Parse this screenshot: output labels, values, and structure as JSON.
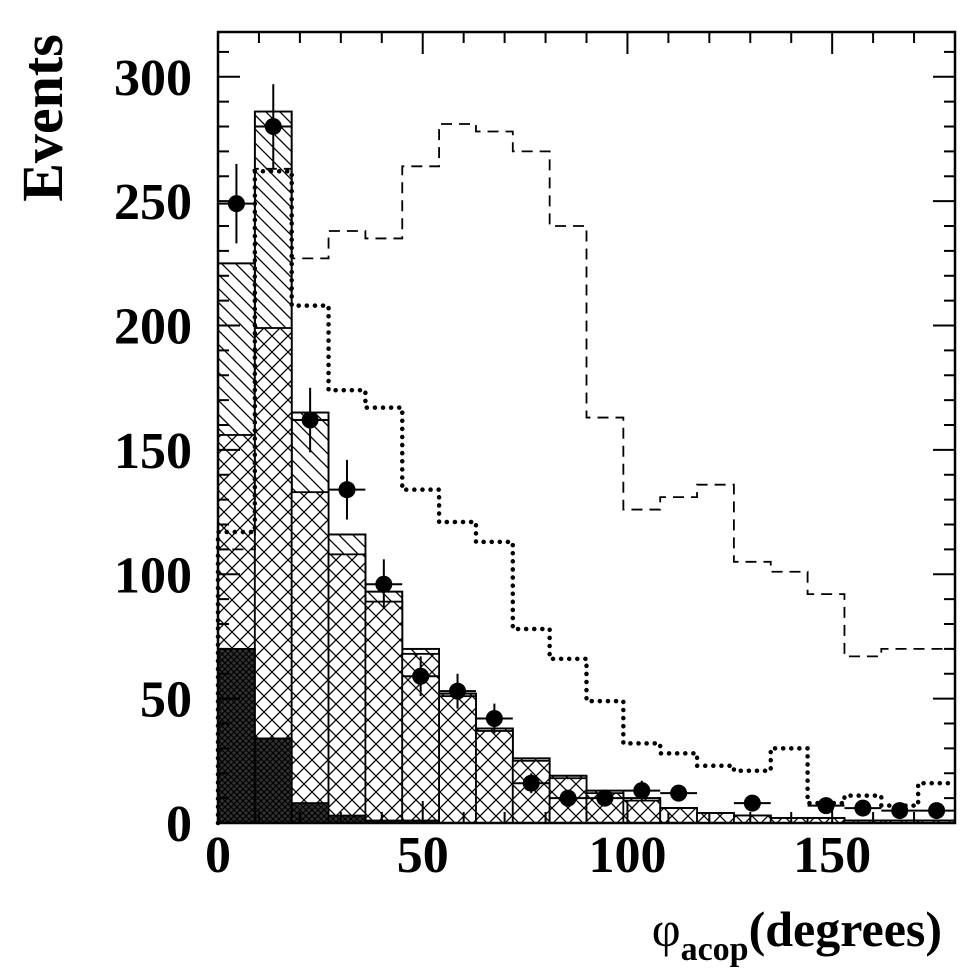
{
  "chart_data": {
    "type": "bar",
    "xlabel": "φ",
    "xlabel_subscript": "acop",
    "xlabel_suffix": "(degrees)",
    "ylabel": "Events",
    "xlim": [
      0,
      180
    ],
    "ylim": [
      0,
      318
    ],
    "x_ticks": [
      0,
      50,
      100,
      150
    ],
    "y_ticks": [
      0,
      50,
      100,
      150,
      200,
      250,
      300
    ],
    "bin_edges": [
      0,
      9,
      18,
      27,
      36,
      45,
      54,
      63,
      72,
      81,
      90,
      99,
      108,
      117,
      126,
      135,
      144,
      153,
      162,
      171,
      180
    ],
    "grid": false,
    "legend": "none",
    "series": [
      {
        "style": "stacked-total-open",
        "values": [
          225,
          286,
          165,
          116,
          93,
          70,
          52,
          38,
          26,
          19,
          13,
          10,
          6,
          4,
          3,
          2,
          2,
          1,
          1,
          1
        ]
      },
      {
        "style": "stacked-diagonal-hatch",
        "values": [
          225,
          286,
          165,
          116,
          93,
          70,
          52,
          38,
          26,
          19,
          13,
          10,
          6,
          4,
          3,
          2,
          2,
          1,
          1,
          1
        ]
      },
      {
        "style": "stacked-crosshatch",
        "values": [
          156,
          199,
          133,
          108,
          89,
          68,
          51,
          37,
          25,
          18,
          12,
          9,
          6,
          4,
          3,
          2,
          2,
          1,
          1,
          1
        ]
      },
      {
        "style": "stacked-dark-fill",
        "values": [
          70,
          34,
          8,
          3,
          1,
          1,
          0,
          0,
          0,
          0,
          0,
          0,
          0,
          0,
          0,
          0,
          0,
          0,
          0,
          0
        ]
      },
      {
        "style": "dotted-line",
        "values": [
          117,
          262,
          208,
          174,
          167,
          134,
          121,
          113,
          78,
          66,
          49,
          32,
          28,
          23,
          21,
          30,
          8,
          11,
          7,
          16
        ]
      },
      {
        "style": "dashed-line",
        "values": [
          110,
          263,
          227,
          238,
          235,
          264,
          281,
          278,
          270,
          240,
          163,
          126,
          131,
          136,
          105,
          101,
          92,
          67,
          70,
          70
        ]
      },
      {
        "style": "data-points",
        "x": [
          4.5,
          13.5,
          22.5,
          31.5,
          40.5,
          49.5,
          58.5,
          67.5,
          76.5,
          85.5,
          94.5,
          103.5,
          112.5,
          130.5,
          148.5,
          157.5,
          166.5,
          175.5
        ],
        "values": [
          249,
          280,
          162,
          134,
          96,
          59,
          53,
          42,
          16,
          10,
          10,
          13,
          12,
          8,
          7,
          6,
          5,
          5
        ],
        "errors": [
          16,
          17,
          13,
          12,
          10,
          8,
          7,
          6,
          4,
          3,
          3,
          4,
          3,
          3,
          3,
          2,
          2,
          2
        ]
      }
    ]
  }
}
